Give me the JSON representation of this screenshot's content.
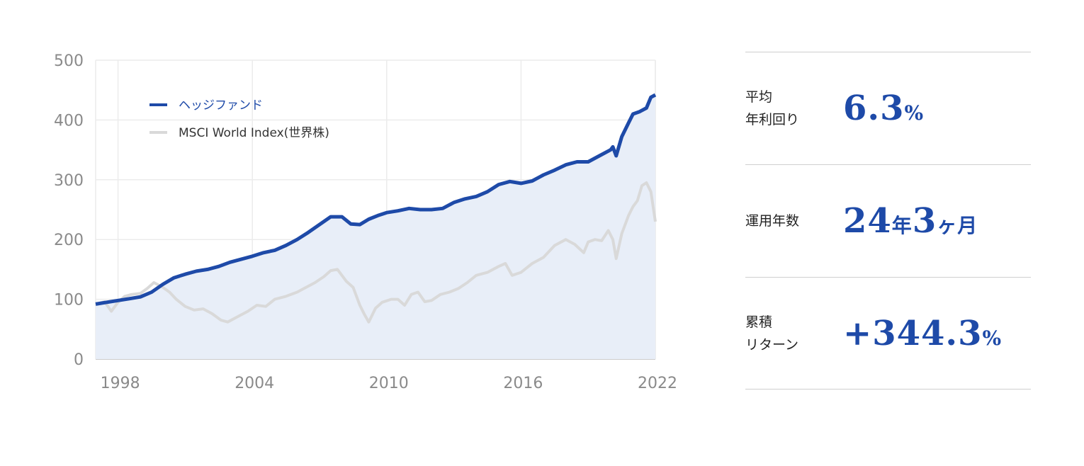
{
  "chart_data": {
    "type": "line",
    "title": "",
    "xlabel": "",
    "ylabel": "",
    "xlim": [
      1997.0,
      2022.0
    ],
    "ylim": [
      0,
      500
    ],
    "yticks": [
      0,
      100,
      200,
      300,
      400,
      500
    ],
    "xticks": [
      1998,
      2004,
      2010,
      2016,
      2022
    ],
    "grid": true,
    "legend_position": "top-left",
    "series": [
      {
        "name": "ヘッジファンド",
        "color": "#1e4aa8",
        "fill": "#e8eef8",
        "area": true,
        "x": [
          1997.0,
          1997.5,
          1998.0,
          1998.5,
          1999.0,
          1999.5,
          2000.0,
          2000.5,
          2001.0,
          2001.5,
          2002.0,
          2002.5,
          2003.0,
          2003.5,
          2004.0,
          2004.5,
          2005.0,
          2005.5,
          2006.0,
          2006.5,
          2007.0,
          2007.5,
          2008.0,
          2008.4,
          2008.8,
          2009.2,
          2009.6,
          2010.0,
          2010.5,
          2011.0,
          2011.5,
          2012.0,
          2012.5,
          2013.0,
          2013.5,
          2014.0,
          2014.5,
          2015.0,
          2015.5,
          2016.0,
          2016.5,
          2017.0,
          2017.5,
          2018.0,
          2018.5,
          2019.0,
          2019.5,
          2020.0,
          2020.1,
          2020.25,
          2020.5,
          2020.8,
          2021.0,
          2021.3,
          2021.6,
          2021.8,
          2022.0
        ],
        "values": [
          92,
          95,
          98,
          101,
          104,
          112,
          125,
          136,
          142,
          147,
          150,
          155,
          162,
          167,
          172,
          178,
          182,
          190,
          200,
          212,
          225,
          238,
          238,
          226,
          225,
          234,
          240,
          245,
          248,
          252,
          250,
          250,
          252,
          262,
          268,
          272,
          280,
          292,
          297,
          294,
          298,
          308,
          316,
          325,
          330,
          330,
          340,
          350,
          355,
          340,
          372,
          395,
          410,
          414,
          420,
          438,
          442
        ]
      },
      {
        "name": "MSCI World Index(世界株)",
        "color": "#d9d9d9",
        "x": [
          1997.0,
          1997.4,
          1997.7,
          1998.0,
          1998.3,
          1998.6,
          1999.0,
          1999.3,
          1999.6,
          2000.0,
          2000.3,
          2000.6,
          2001.0,
          2001.4,
          2001.8,
          2002.2,
          2002.6,
          2002.9,
          2003.3,
          2003.8,
          2004.2,
          2004.6,
          2005.0,
          2005.5,
          2006.0,
          2006.4,
          2006.8,
          2007.2,
          2007.5,
          2007.8,
          2008.2,
          2008.5,
          2008.8,
          2009.0,
          2009.2,
          2009.5,
          2009.8,
          2010.2,
          2010.5,
          2010.8,
          2011.1,
          2011.4,
          2011.7,
          2012.0,
          2012.4,
          2012.8,
          2013.2,
          2013.6,
          2014.0,
          2014.5,
          2015.0,
          2015.3,
          2015.6,
          2016.0,
          2016.5,
          2017.0,
          2017.5,
          2018.0,
          2018.4,
          2018.8,
          2019.0,
          2019.3,
          2019.6,
          2019.9,
          2020.1,
          2020.25,
          2020.5,
          2020.8,
          2021.0,
          2021.2,
          2021.4,
          2021.6,
          2021.8,
          2022.0
        ],
        "values": [
          92,
          96,
          80,
          95,
          105,
          108,
          110,
          118,
          128,
          120,
          112,
          100,
          88,
          82,
          84,
          76,
          65,
          62,
          70,
          80,
          90,
          88,
          100,
          105,
          112,
          120,
          128,
          138,
          148,
          150,
          130,
          120,
          90,
          75,
          62,
          85,
          95,
          100,
          100,
          90,
          108,
          112,
          96,
          98,
          108,
          112,
          118,
          128,
          140,
          145,
          155,
          160,
          140,
          145,
          160,
          170,
          190,
          200,
          192,
          178,
          196,
          200,
          198,
          215,
          200,
          168,
          210,
          240,
          255,
          265,
          290,
          295,
          280,
          230
        ]
      }
    ]
  },
  "stats": [
    {
      "label": "平均\n年利回り",
      "value": "6.3",
      "unit": "%"
    },
    {
      "label": "運用年数",
      "value_parts": [
        "24",
        "年",
        "3",
        "ヶ月"
      ]
    },
    {
      "label": "累積\nリターン",
      "value": "+344.3",
      "unit": "%"
    }
  ]
}
